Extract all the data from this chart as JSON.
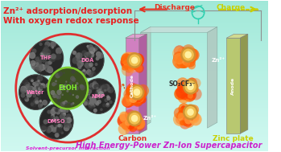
{
  "bg_color": "#a0e8d8",
  "title_line1": "Zn²⁺ adsorption/desorption",
  "title_line2": "With oxygen redox response",
  "title_bottom": "High Energy-Power Zn-Ion Supercapacitor",
  "discharge_label": "Discharge",
  "charge_label": "Charge",
  "circle_label": "Solvent-precursor interaction",
  "carbon_label": "Carbon",
  "cathode_label": "Cathode",
  "anode_label": "Anode",
  "zinc_plate_label": "Zinc plate",
  "so3cf3_label": "SO₃CF₃⁻",
  "zn2plus_label": "Zn²⁺",
  "solvent_labels": [
    "THF",
    "DOA",
    "EtOH",
    "Water",
    "NMP",
    "DMSO"
  ],
  "outer_circle_color": "#e03030",
  "inner_circle_color": "#80d030",
  "cathode_color_top": "#d080c0",
  "cathode_color_bot": "#b060a0",
  "anode_color_top": "#b8c870",
  "anode_color_bot": "#909850",
  "elec_color": "#a8c8c0",
  "title_color_top": "#e82020",
  "title_color_bottom": "#cc22cc",
  "discharge_color": "#e83020",
  "charge_color": "#c8d000",
  "carbon_label_color": "#e83020",
  "zinc_plate_color": "#c8d000",
  "solvent_text_color": "#ff80c0",
  "etoh_text_color": "#80ee30",
  "circle_text_color": "#e020d8"
}
